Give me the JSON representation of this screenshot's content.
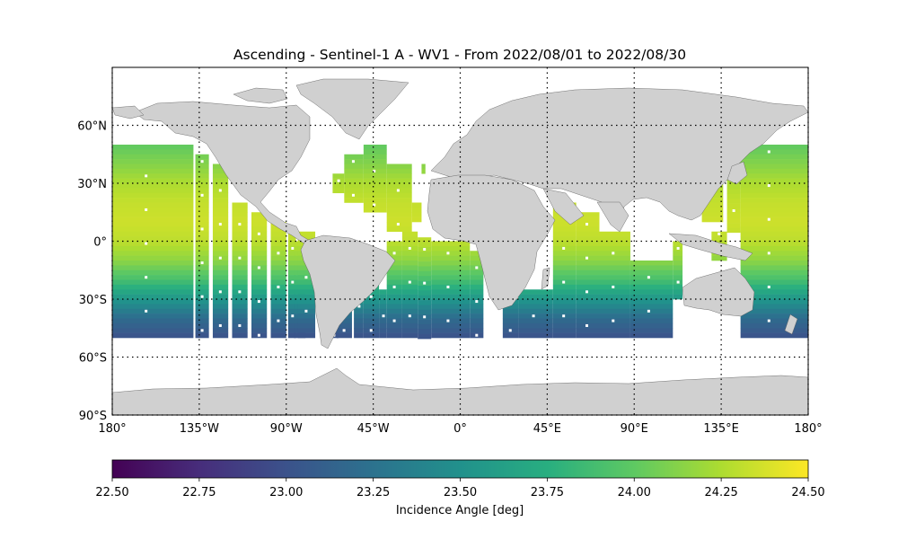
{
  "title": "Ascending - Sentinel-1 A - WV1 - From 2022/08/01 to 2022/08/30",
  "chart_data": {
    "type": "heatmap",
    "title": "Ascending - Sentinel-1 A - WV1 - From 2022/08/01 to 2022/08/30",
    "projection": "PlateCarree",
    "xlim": [
      -180,
      180
    ],
    "ylim": [
      -90,
      90
    ],
    "grid": true,
    "x_tick_values": [
      -180,
      -135,
      -90,
      -45,
      0,
      45,
      90,
      135,
      180
    ],
    "x_tick_labels": [
      "180°",
      "135°W",
      "90°W",
      "45°W",
      "0°",
      "45°E",
      "90°E",
      "135°E",
      "180°"
    ],
    "y_tick_values": [
      60,
      30,
      0,
      -30,
      -60,
      -90
    ],
    "y_tick_labels": [
      "60°N",
      "30°N",
      "0°",
      "30°S",
      "60°S",
      "90°S"
    ],
    "colorbar": {
      "label": "Incidence Angle [deg]",
      "colormap": "viridis",
      "range": [
        22.5,
        24.5
      ],
      "ticks": [
        "22.50",
        "22.75",
        "23.00",
        "23.25",
        "23.50",
        "23.75",
        "24.00",
        "24.25",
        "24.50"
      ],
      "placement": "bottom"
    },
    "value_by_latitude": {
      "lat": [
        50,
        40,
        30,
        20,
        10,
        0,
        -10,
        -20,
        -30,
        -40,
        -50
      ],
      "incidence_angle_deg": [
        24.0,
        24.12,
        24.25,
        24.32,
        24.35,
        24.3,
        24.15,
        23.9,
        23.55,
        23.2,
        23.0
      ]
    },
    "swaths": [
      {
        "lon": [
          -180,
          -138
        ],
        "lat": [
          -50,
          50
        ]
      },
      {
        "lon": [
          -137,
          -130
        ],
        "lat": [
          -50,
          45
        ]
      },
      {
        "lon": [
          -128,
          -120
        ],
        "lat": [
          -50,
          40
        ]
      },
      {
        "lon": [
          -118,
          -110
        ],
        "lat": [
          -50,
          20
        ]
      },
      {
        "lon": [
          -108,
          -100
        ],
        "lat": [
          -50,
          15
        ]
      },
      {
        "lon": [
          -98,
          -90
        ],
        "lat": [
          -50,
          10
        ]
      },
      {
        "lon": [
          -89,
          -85
        ],
        "lat": [
          -50,
          5
        ]
      },
      {
        "lon": [
          -86,
          -80
        ],
        "lat": [
          -50,
          0
        ]
      },
      {
        "lon": [
          -68,
          -63
        ],
        "lat": [
          -50,
          -40
        ]
      },
      {
        "lon": [
          -64,
          -56
        ],
        "lat": [
          -50,
          -30
        ]
      },
      {
        "lon": [
          -55,
          -50
        ],
        "lat": [
          -50,
          -20
        ]
      },
      {
        "lon": [
          -50,
          -42
        ],
        "lat": [
          -50,
          -10
        ]
      },
      {
        "lon": [
          -42,
          -38
        ],
        "lat": [
          -50,
          -25
        ]
      },
      {
        "lon": [
          -38,
          -30
        ],
        "lat": [
          -50,
          0
        ]
      },
      {
        "lon": [
          -30,
          -22
        ],
        "lat": [
          -50,
          5
        ]
      },
      {
        "lon": [
          -22,
          -15
        ],
        "lat": [
          -50,
          2
        ]
      },
      {
        "lon": [
          -15,
          5
        ],
        "lat": [
          -50,
          0
        ]
      },
      {
        "lon": [
          5,
          12
        ],
        "lat": [
          -50,
          -5
        ]
      },
      {
        "lon": [
          22,
          30
        ],
        "lat": [
          -50,
          -30
        ]
      },
      {
        "lon": [
          30,
          48
        ],
        "lat": [
          -50,
          -25
        ]
      },
      {
        "lon": [
          48,
          60
        ],
        "lat": [
          -50,
          20
        ]
      },
      {
        "lon": [
          60,
          72
        ],
        "lat": [
          -50,
          15
        ]
      },
      {
        "lon": [
          72,
          88
        ],
        "lat": [
          -50,
          5
        ]
      },
      {
        "lon": [
          88,
          110
        ],
        "lat": [
          -50,
          -10
        ]
      },
      {
        "lon": [
          110,
          115
        ],
        "lat": [
          -30,
          0
        ]
      },
      {
        "lon": [
          125,
          136
        ],
        "lat": [
          10,
          35
        ]
      },
      {
        "lon": [
          130,
          138
        ],
        "lat": [
          -10,
          5
        ]
      },
      {
        "lon": [
          145,
          180
        ],
        "lat": [
          -50,
          50
        ]
      },
      {
        "lon": [
          138,
          145
        ],
        "lat": [
          5,
          42
        ]
      },
      {
        "lon": [
          -84,
          -75
        ],
        "lat": [
          -50,
          5
        ]
      },
      {
        "lon": [
          -60,
          -50
        ],
        "lat": [
          20,
          45
        ]
      },
      {
        "lon": [
          -50,
          -38
        ],
        "lat": [
          15,
          50
        ]
      },
      {
        "lon": [
          -38,
          -25
        ],
        "lat": [
          5,
          40
        ]
      },
      {
        "lon": [
          -25,
          -20
        ],
        "lat": [
          10,
          20
        ]
      },
      {
        "lon": [
          -66,
          -60
        ],
        "lat": [
          25,
          35
        ]
      },
      {
        "lon": [
          -20,
          -18
        ],
        "lat": [
          35,
          40
        ]
      }
    ],
    "land_color": "#d0d0d0",
    "nodata_color": "#ffffff"
  }
}
